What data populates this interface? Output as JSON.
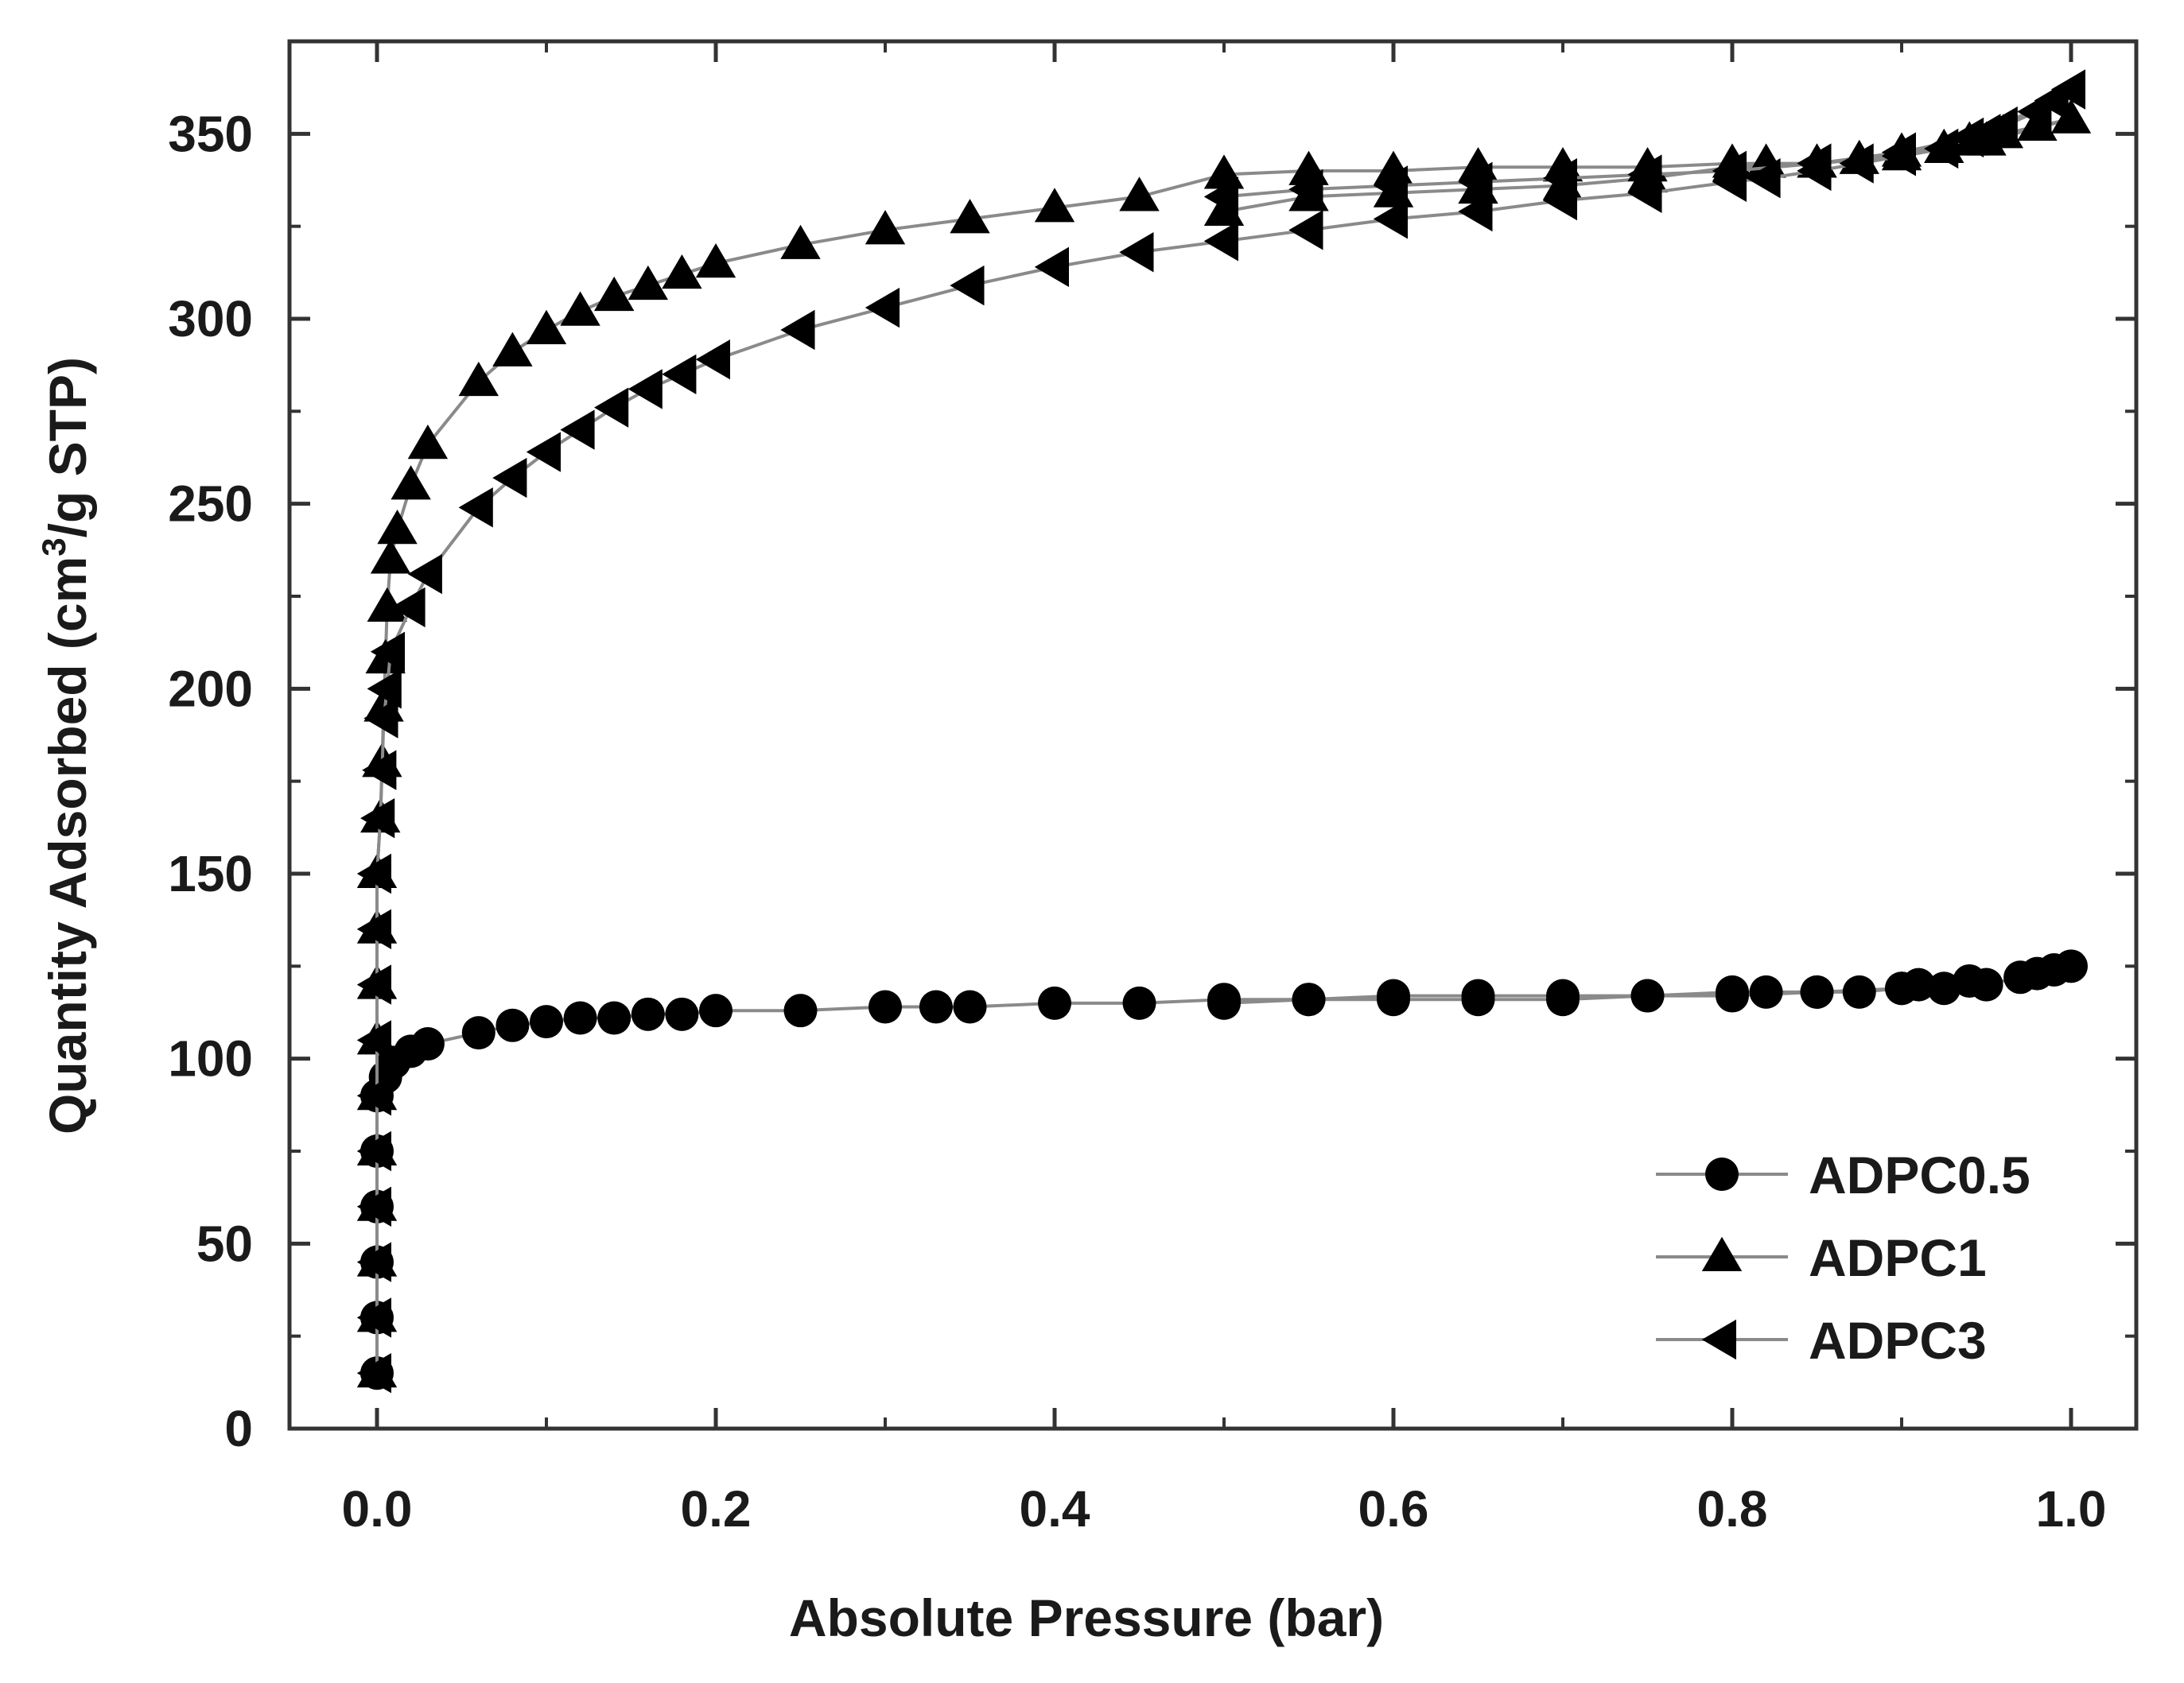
{
  "chart_data": {
    "type": "scatter",
    "title": "",
    "xlabel": "Absolute Pressure (bar)",
    "ylabel_main": "Quantity Adsorbed (cm",
    "ylabel_sup": "3",
    "ylabel_tail": "/g STP)",
    "xlim": [
      -0.05,
      1.05
    ],
    "ylim": [
      0,
      375
    ],
    "xticks": [
      0.0,
      0.2,
      0.4,
      0.6,
      0.8,
      1.0
    ],
    "xtick_labels": [
      "0.0",
      "0.2",
      "0.4",
      "0.6",
      "0.8",
      "1.0"
    ],
    "yticks": [
      0,
      50,
      100,
      150,
      200,
      250,
      300,
      350
    ],
    "ytick_labels": [
      "0",
      "50",
      "100",
      "150",
      "200",
      "250",
      "300",
      "350"
    ],
    "grid": false,
    "legend_position": "bottom-right",
    "series": [
      {
        "name": "ADPC0.5",
        "marker": "circle",
        "points": [
          [
            0.0,
            15
          ],
          [
            0.0,
            30
          ],
          [
            0.0,
            45
          ],
          [
            0.0,
            60
          ],
          [
            0.0,
            75
          ],
          [
            0.0,
            90
          ],
          [
            0.005,
            95
          ],
          [
            0.01,
            99
          ],
          [
            0.02,
            102
          ],
          [
            0.03,
            104
          ],
          [
            0.06,
            107
          ],
          [
            0.08,
            109
          ],
          [
            0.1,
            110
          ],
          [
            0.12,
            111
          ],
          [
            0.14,
            111
          ],
          [
            0.16,
            112
          ],
          [
            0.18,
            112
          ],
          [
            0.2,
            113
          ],
          [
            0.25,
            113
          ],
          [
            0.3,
            114
          ],
          [
            0.33,
            114
          ],
          [
            0.35,
            114
          ],
          [
            0.4,
            115
          ],
          [
            0.45,
            115
          ],
          [
            0.5,
            116
          ],
          [
            0.55,
            116
          ],
          [
            0.6,
            117
          ],
          [
            0.65,
            117
          ],
          [
            0.7,
            117
          ],
          [
            0.75,
            117
          ],
          [
            0.8,
            118
          ],
          [
            0.82,
            118
          ],
          [
            0.85,
            118
          ],
          [
            0.875,
            118
          ],
          [
            0.9,
            119
          ],
          [
            0.91,
            120
          ],
          [
            0.925,
            119
          ],
          [
            0.94,
            121
          ],
          [
            0.95,
            120
          ],
          [
            0.97,
            122
          ],
          [
            0.98,
            123
          ],
          [
            0.99,
            124
          ],
          [
            1.0,
            125
          ],
          [
            0.95,
            120
          ],
          [
            0.9,
            119
          ],
          [
            0.85,
            118
          ],
          [
            0.8,
            117
          ],
          [
            0.75,
            117
          ],
          [
            0.7,
            116
          ],
          [
            0.65,
            116
          ],
          [
            0.6,
            116
          ],
          [
            0.55,
            116
          ],
          [
            0.5,
            115
          ]
        ]
      },
      {
        "name": "ADPC1",
        "marker": "triangle-up",
        "points": [
          [
            0.0,
            15
          ],
          [
            0.0,
            30
          ],
          [
            0.0,
            45
          ],
          [
            0.0,
            60
          ],
          [
            0.0,
            75
          ],
          [
            0.0,
            90
          ],
          [
            0.0,
            105
          ],
          [
            0.0,
            120
          ],
          [
            0.0,
            135
          ],
          [
            0.0,
            150
          ],
          [
            0.002,
            165
          ],
          [
            0.003,
            180
          ],
          [
            0.004,
            195
          ],
          [
            0.005,
            208
          ],
          [
            0.006,
            222
          ],
          [
            0.008,
            235
          ],
          [
            0.012,
            243
          ],
          [
            0.02,
            255
          ],
          [
            0.03,
            266
          ],
          [
            0.06,
            283
          ],
          [
            0.08,
            291
          ],
          [
            0.1,
            297
          ],
          [
            0.12,
            302
          ],
          [
            0.14,
            306
          ],
          [
            0.16,
            309
          ],
          [
            0.18,
            312
          ],
          [
            0.2,
            315
          ],
          [
            0.25,
            320
          ],
          [
            0.3,
            324
          ],
          [
            0.35,
            327
          ],
          [
            0.4,
            330
          ],
          [
            0.45,
            333
          ],
          [
            0.5,
            339
          ],
          [
            0.55,
            340
          ],
          [
            0.6,
            340
          ],
          [
            0.65,
            341
          ],
          [
            0.7,
            341
          ],
          [
            0.75,
            341
          ],
          [
            0.8,
            342
          ],
          [
            0.82,
            342
          ],
          [
            0.85,
            342
          ],
          [
            0.875,
            343
          ],
          [
            0.9,
            344
          ],
          [
            0.925,
            346
          ],
          [
            0.94,
            348
          ],
          [
            0.96,
            350
          ],
          [
            0.98,
            352
          ],
          [
            1.0,
            354
          ],
          [
            0.95,
            348
          ],
          [
            0.9,
            345
          ],
          [
            0.85,
            342
          ],
          [
            0.8,
            341
          ],
          [
            0.75,
            338
          ],
          [
            0.7,
            336
          ],
          [
            0.65,
            335
          ],
          [
            0.6,
            334
          ],
          [
            0.55,
            333
          ],
          [
            0.5,
            329
          ]
        ]
      },
      {
        "name": "ADPC3",
        "marker": "triangle-left",
        "points": [
          [
            0.0,
            15
          ],
          [
            0.0,
            30
          ],
          [
            0.0,
            45
          ],
          [
            0.0,
            60
          ],
          [
            0.0,
            75
          ],
          [
            0.0,
            90
          ],
          [
            0.0,
            105
          ],
          [
            0.0,
            120
          ],
          [
            0.0,
            135
          ],
          [
            0.0,
            150
          ],
          [
            0.002,
            165
          ],
          [
            0.003,
            178
          ],
          [
            0.004,
            192
          ],
          [
            0.006,
            200
          ],
          [
            0.008,
            210
          ],
          [
            0.02,
            222
          ],
          [
            0.03,
            231
          ],
          [
            0.06,
            249
          ],
          [
            0.08,
            257
          ],
          [
            0.1,
            264
          ],
          [
            0.12,
            270
          ],
          [
            0.14,
            276
          ],
          [
            0.16,
            281
          ],
          [
            0.18,
            285
          ],
          [
            0.2,
            289
          ],
          [
            0.25,
            297
          ],
          [
            0.3,
            303
          ],
          [
            0.35,
            309
          ],
          [
            0.4,
            314
          ],
          [
            0.45,
            318
          ],
          [
            0.5,
            321
          ],
          [
            0.55,
            324
          ],
          [
            0.6,
            327
          ],
          [
            0.65,
            329
          ],
          [
            0.7,
            332
          ],
          [
            0.75,
            334
          ],
          [
            0.8,
            337
          ],
          [
            0.82,
            338
          ],
          [
            0.85,
            340
          ],
          [
            0.875,
            342
          ],
          [
            0.9,
            344
          ],
          [
            0.925,
            346
          ],
          [
            0.94,
            349
          ],
          [
            0.96,
            352
          ],
          [
            0.98,
            356
          ],
          [
            0.99,
            359
          ],
          [
            1.0,
            362
          ],
          [
            0.95,
            350
          ],
          [
            0.9,
            345
          ],
          [
            0.85,
            342
          ],
          [
            0.8,
            340
          ],
          [
            0.75,
            339
          ],
          [
            0.7,
            338
          ],
          [
            0.65,
            337
          ],
          [
            0.6,
            336
          ],
          [
            0.55,
            335
          ],
          [
            0.5,
            333
          ]
        ]
      }
    ]
  }
}
